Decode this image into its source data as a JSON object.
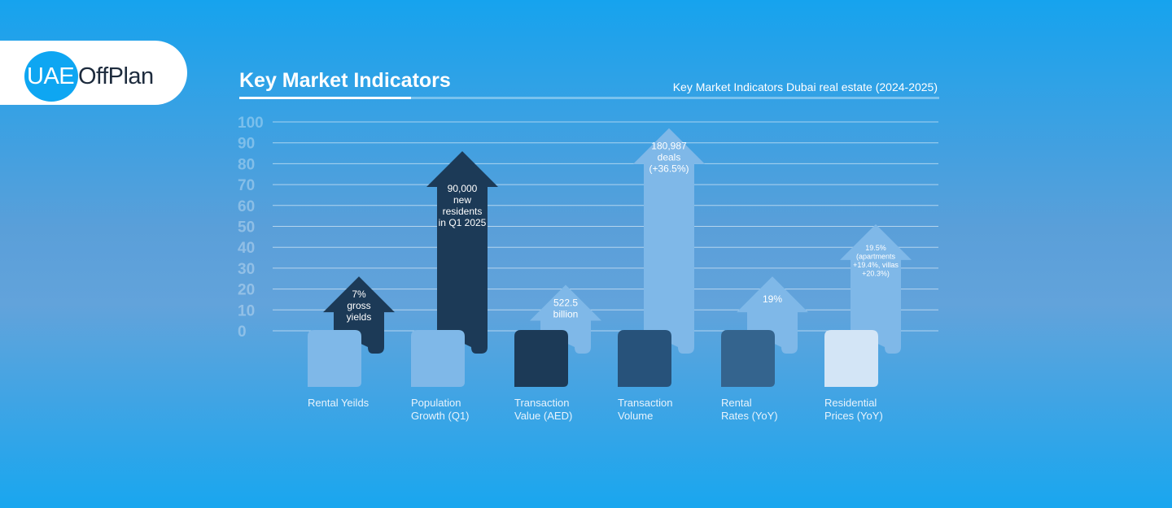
{
  "brand": {
    "logo_left": "UAE",
    "logo_right": "OffPlan"
  },
  "header": {
    "title": "Key Market Indicators",
    "subtitle": "Key Market Indicators Dubai real estate (2024-2025)"
  },
  "colors": {
    "background": "#1aa6ef",
    "accent_light": "#7fb8e8",
    "navy_dark": "#1c3a57",
    "navy_mid": "#27527a",
    "navy_soft": "#34648e",
    "pale": "#d3e5f6",
    "logo_blue": "#0ea6f2"
  },
  "chart_data": {
    "type": "bar",
    "ylim": [
      0,
      100
    ],
    "yticks": [
      "0",
      "10",
      "20",
      "30",
      "40",
      "50",
      "60",
      "70",
      "80",
      "90",
      "100"
    ],
    "grid": true,
    "categories": [
      [
        "Rental Yeilds"
      ],
      [
        "Population",
        "Growth (Q1)"
      ],
      [
        "Transaction",
        "Value (AED)"
      ],
      [
        "Transaction",
        "Volume"
      ],
      [
        "Rental",
        "Rates (YoY)"
      ],
      [
        "Residential",
        "Prices (YoY)"
      ]
    ],
    "values": [
      26,
      86,
      22,
      97,
      26,
      51
    ],
    "data_labels": [
      [
        "7%",
        "gross",
        "yields"
      ],
      [
        "90,000",
        "new",
        "residents",
        "in Q1 2025"
      ],
      [
        "522.5",
        "billion"
      ],
      [
        "180,987",
        "deals",
        "(+36.5%)"
      ],
      [
        "19%"
      ],
      [
        "19.5%",
        "(apartments",
        "+19.4%, villas",
        "+20.3%)"
      ]
    ],
    "arrow_colors": [
      "#1c3a57",
      "#1c3a57",
      "#7fb8e8",
      "#7fb8e8",
      "#7fb8e8",
      "#7fb8e8"
    ],
    "base_colors": [
      "#7fb8e8",
      "#7fb8e8",
      "#1c3a57",
      "#27527a",
      "#34648e",
      "#d3e5f6"
    ],
    "label_colors": [
      "#ffffff",
      "#ffffff",
      "#ffffff",
      "#ffffff",
      "#ffffff",
      "#ffffff"
    ]
  }
}
